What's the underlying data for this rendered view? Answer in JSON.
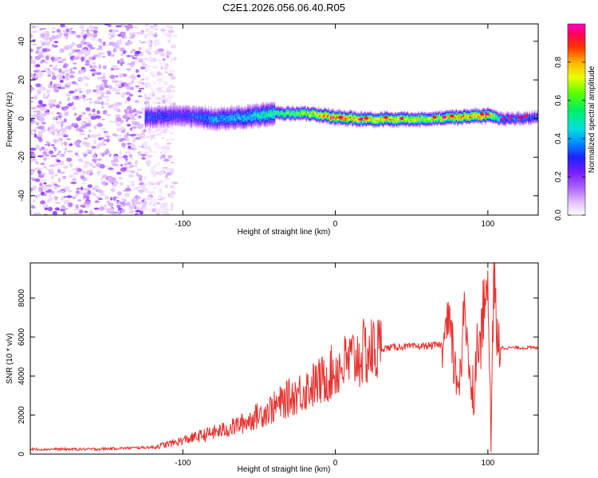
{
  "title": "C2E1.2026.056.06.40.R05",
  "chart_data": [
    {
      "type": "heatmap",
      "xlabel": "Height of straight line (km)",
      "ylabel": "Frequency (Hz)",
      "xlim": [
        -200,
        133
      ],
      "ylim": [
        -50,
        49
      ],
      "x_ticks": [
        -100,
        0,
        100
      ],
      "y_ticks": [
        -40,
        -20,
        0,
        20,
        40
      ],
      "colorbar": {
        "label": "Normalized spectral amplitude",
        "range": [
          0,
          1
        ],
        "ticks": [
          "0.0",
          "0.2",
          "0.4",
          "0.6",
          "0.8"
        ]
      },
      "ridge": {
        "x": [
          -125,
          -100,
          -80,
          -60,
          -40,
          -20,
          0,
          20,
          40,
          60,
          80,
          100,
          110,
          133
        ],
        "center_hz": [
          1,
          2,
          0,
          1,
          3,
          3,
          1,
          0,
          0,
          0,
          1,
          2,
          0,
          1
        ],
        "max_amplitude": [
          0.35,
          0.3,
          0.4,
          0.45,
          0.55,
          0.7,
          0.95,
          0.8,
          0.85,
          0.7,
          0.9,
          0.85,
          0.4,
          0.35
        ]
      },
      "noise_region": {
        "x_from": -200,
        "x_to": -110,
        "max_amplitude": 0.2
      }
    },
    {
      "type": "line",
      "xlabel": "Height of straight line (km)",
      "ylabel": "SNR (10 * v/v)",
      "xlim": [
        -200,
        133
      ],
      "ylim": [
        0,
        9800
      ],
      "x_ticks": [
        -100,
        0,
        100
      ],
      "y_ticks": [
        0,
        2000,
        4000,
        6000,
        8000
      ],
      "color": "#e8312e",
      "series": [
        {
          "x": [
            -200,
            -180,
            -160,
            -140,
            -120,
            -110,
            -100,
            -90,
            -80,
            -70,
            -60,
            -50,
            -40,
            -30,
            -20,
            -10,
            0,
            10,
            20,
            30,
            40,
            50,
            60,
            70,
            75,
            80,
            85,
            90,
            95,
            100,
            102,
            104,
            106,
            110,
            120,
            133
          ],
          "values": [
            250,
            250,
            250,
            300,
            350,
            500,
            700,
            900,
            1100,
            1300,
            1600,
            2000,
            2400,
            2900,
            3300,
            3700,
            4300,
            4800,
            5200,
            5400,
            5500,
            5500,
            5550,
            5600,
            6500,
            3500,
            7000,
            3000,
            6200,
            9000,
            700,
            9200,
            5500,
            5450,
            5450,
            5450
          ]
        }
      ]
    }
  ]
}
